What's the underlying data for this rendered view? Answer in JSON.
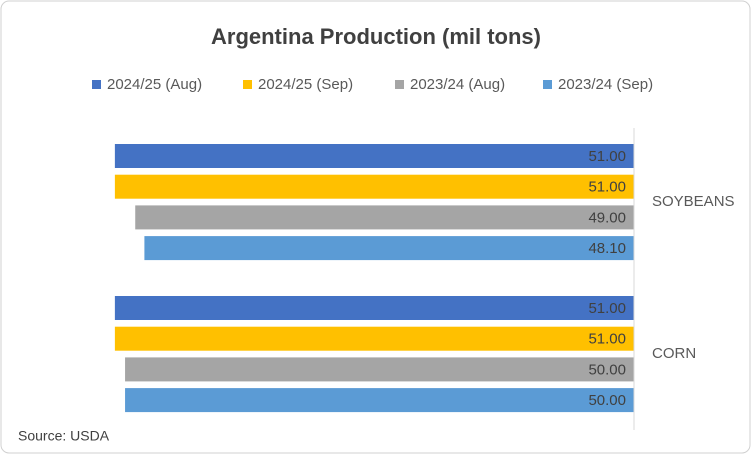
{
  "chart_data": {
    "type": "bar",
    "orientation": "horizontal",
    "reversed": true,
    "title": "Argentina Production (mil tons)",
    "source": "Source: USDA",
    "categories": [
      "SOYBEANS",
      "CORN"
    ],
    "series": [
      {
        "name": "2024/25 (Aug)",
        "color": "#4472c4",
        "values": [
          51.0,
          51.0
        ],
        "value_labels": [
          "51.00",
          "51.00"
        ]
      },
      {
        "name": "2024/25 (Sep)",
        "color": "#ffc000",
        "values": [
          51.0,
          51.0
        ],
        "value_labels": [
          "51.00",
          "51.00"
        ]
      },
      {
        "name": "2023/24 (Aug)",
        "color": "#a5a5a5",
        "values": [
          49.0,
          50.0
        ],
        "value_labels": [
          "49.00",
          "50.00"
        ]
      },
      {
        "name": "2023/24 (Sep)",
        "color": "#5b9bd5",
        "values": [
          48.1,
          50.0
        ],
        "value_labels": [
          "48.10",
          "50.00"
        ]
      }
    ],
    "xlim": [
      0,
      52
    ],
    "legend": "top",
    "grid": false
  }
}
